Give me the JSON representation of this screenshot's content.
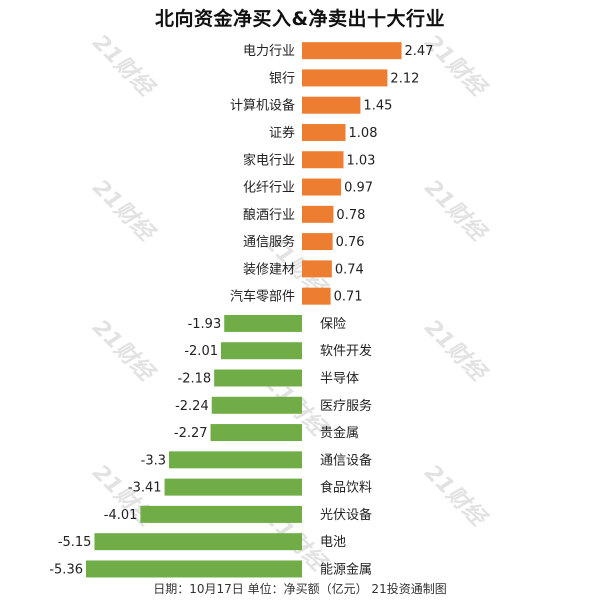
{
  "title": "北向资金净买入&净卖出十大行业",
  "footer": "日期：10月17日 单位：净买额（亿元） 21投资通制图",
  "watermark": "21财经",
  "colors": {
    "positive": "#ed7d31",
    "negative": "#70ad47"
  },
  "chart_data": {
    "type": "bar",
    "orientation": "horizontal",
    "title": "北向资金净买入&净卖出十大行业",
    "xlabel": "",
    "ylabel": "",
    "categories": [
      "电力行业",
      "银行",
      "计算机设备",
      "证券",
      "家电行业",
      "化纤行业",
      "酿酒行业",
      "通信服务",
      "装修建材",
      "汽车零部件",
      "保险",
      "软件开发",
      "半导体",
      "医疗服务",
      "贵金属",
      "通信设备",
      "食品饮料",
      "光伏设备",
      "电池",
      "能源金属"
    ],
    "values": [
      2.47,
      2.12,
      1.45,
      1.08,
      1.03,
      0.97,
      0.78,
      0.76,
      0.74,
      0.71,
      -1.93,
      -2.01,
      -2.18,
      -2.24,
      -2.27,
      -3.3,
      -3.41,
      -4.01,
      -5.15,
      -5.36
    ],
    "value_labels": [
      "2.47",
      "2.12",
      "1.45",
      "1.08",
      "1.03",
      "0.97",
      "0.78",
      "0.76",
      "0.74",
      "0.71",
      "-1.93",
      "-2.01",
      "-2.18",
      "-2.24",
      "-2.27",
      "-3.3",
      "-3.41",
      "-4.01",
      "-5.15",
      "-5.36"
    ],
    "xlim": [
      -5.36,
      2.47
    ],
    "grid": false,
    "legend": "none"
  }
}
